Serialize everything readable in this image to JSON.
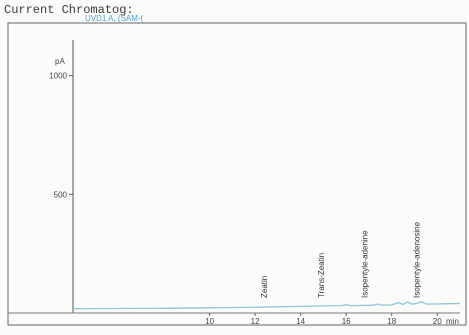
{
  "header": {
    "title": "Current Chromatog:"
  },
  "chart_data": {
    "type": "line",
    "trace_label": "UVD1 A, (SAM-(",
    "title": "",
    "xlabel": "min",
    "ylabel": "pA",
    "xlim": [
      4,
      21
    ],
    "ylim": [
      0,
      1150
    ],
    "x_ticks": [
      10,
      12,
      14,
      16,
      18,
      20
    ],
    "y_ticks": [
      500,
      1000
    ],
    "grid": false,
    "trace_color": "#8fc7d9",
    "baseline": [
      [
        4.0,
        18
      ],
      [
        6.0,
        19
      ],
      [
        8.0,
        20
      ],
      [
        10.0,
        22
      ],
      [
        11.0,
        23
      ],
      [
        12.0,
        24
      ],
      [
        13.0,
        26
      ],
      [
        14.0,
        28
      ],
      [
        15.0,
        30
      ],
      [
        15.8,
        31
      ],
      [
        16.0,
        35
      ],
      [
        16.2,
        31
      ],
      [
        16.8,
        32
      ],
      [
        17.2,
        33
      ],
      [
        17.4,
        38
      ],
      [
        17.6,
        33
      ],
      [
        18.0,
        34
      ],
      [
        18.3,
        44
      ],
      [
        18.5,
        36
      ],
      [
        18.7,
        46
      ],
      [
        18.9,
        37
      ],
      [
        19.1,
        40
      ],
      [
        19.3,
        48
      ],
      [
        19.5,
        38
      ],
      [
        20.0,
        38
      ],
      [
        20.5,
        39
      ],
      [
        21.0,
        40
      ]
    ],
    "annotations": [
      {
        "label": "Zeatin",
        "x": 12.4
      },
      {
        "label": "Trans-Zeatin",
        "x": 14.9
      },
      {
        "label": "Isopentyle-adenine",
        "x": 16.8
      },
      {
        "label": "Isopentyle-adenosine",
        "x": 19.1
      }
    ]
  }
}
